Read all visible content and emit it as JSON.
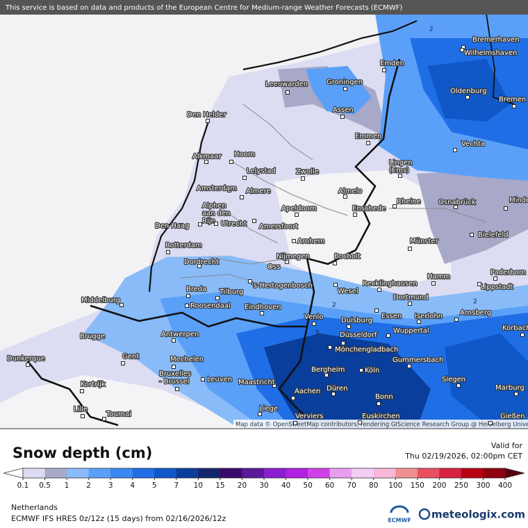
{
  "banner": "This service is based on data and products of the European Centre for Medium-range Weather Forecasts (ECMWF)",
  "attribution": "Map data © OpenStreetMap contributors, rendering GIScience Research Group @ Heidelberg University",
  "cities": [
    "Bremerhaven",
    "Wilhelmshaven",
    "Emden",
    "Groningen",
    "Leeuwarden",
    "Oldenburg",
    "Bremen",
    "Assen",
    "Den Helder",
    "Emmen",
    "Vechta",
    "Alkmaar",
    "Hoorn",
    [
      "Lingen",
      "(Ems)"
    ],
    "Lelystad",
    "Zwolle",
    "Amsterdam",
    "Almere",
    "Almelo",
    [
      "Alphen",
      "aan den",
      "Rijn"
    ],
    "Rheine",
    "Osnabrück",
    "Minden",
    "Apeldoorn",
    "Enschede",
    "Utrecht",
    "Amersfoort",
    "Den Haag",
    "Bielefeld",
    "Arnhem",
    "Münster",
    "Rotterdam",
    "Nijmegen",
    "Oss",
    "Bocholt",
    "Dordrecht",
    "Paderborn",
    "Hamm",
    "'s-Hertogenbosch",
    "Lippstadt",
    "Breda",
    "Tilburg",
    "Recklinghausen",
    "Wesel",
    "Middelburg",
    "Dortmund",
    "Roosendaal",
    "Eindhoven",
    "Arnsberg",
    "Essen",
    "Iserlohn",
    "Venlo",
    "Duisburg",
    "Korbach",
    "Wuppertal",
    "Brugge",
    "Antwerpen",
    "Düsseldorf",
    "Mönchengladbach",
    "Dunkerque",
    "Gent",
    "Gummersbach",
    "Mechelen",
    "Bergheim",
    "Köln",
    [
      "Bruxelles",
      "- Brussel"
    ],
    "Leuven",
    "Siegen",
    "Maastricht",
    "Marburg",
    "Kortrijk",
    "Düren",
    "Aachen",
    "Bonn",
    "Liege",
    "Lille",
    "Tournai",
    "Gießen",
    "Verviers",
    "Euskirchen"
  ],
  "contour_labels": [
    "2",
    "2",
    "2",
    "5"
  ],
  "legend": {
    "title": "Snow depth (cm)",
    "valid_label": "Valid for",
    "valid_time": "Thu 02/19/2026, 02:00pm CET",
    "ticks": [
      0.1,
      0.5,
      1,
      2,
      3,
      4,
      5,
      7,
      10,
      15,
      20,
      30,
      40,
      50,
      60,
      70,
      80,
      100,
      150,
      200,
      250,
      300,
      400
    ],
    "under_color": "#ffffff",
    "over_color": "#5a0010",
    "colors": [
      "#dcdcf2",
      "#a8a8c8",
      "#88bbf8",
      "#5aa0f8",
      "#3b88f0",
      "#1f6ee6",
      "#1057c8",
      "#0a3e9c",
      "#14266a",
      "#3a0a6a",
      "#5a1a9a",
      "#8a1ed0",
      "#b020e0",
      "#d040e8",
      "#e89ef0",
      "#f2cdf4",
      "#f8b8d8",
      "#f09090",
      "#e85060",
      "#d82040",
      "#b80010",
      "#900010"
    ]
  },
  "footer": {
    "region": "Netherlands",
    "model": "ECMWF IFS HRES 0z/12z (15 days) from 02/16/2026/12z",
    "logo_ecmwf": "ECMWF",
    "logo_meteologix": "meteologix.com"
  }
}
